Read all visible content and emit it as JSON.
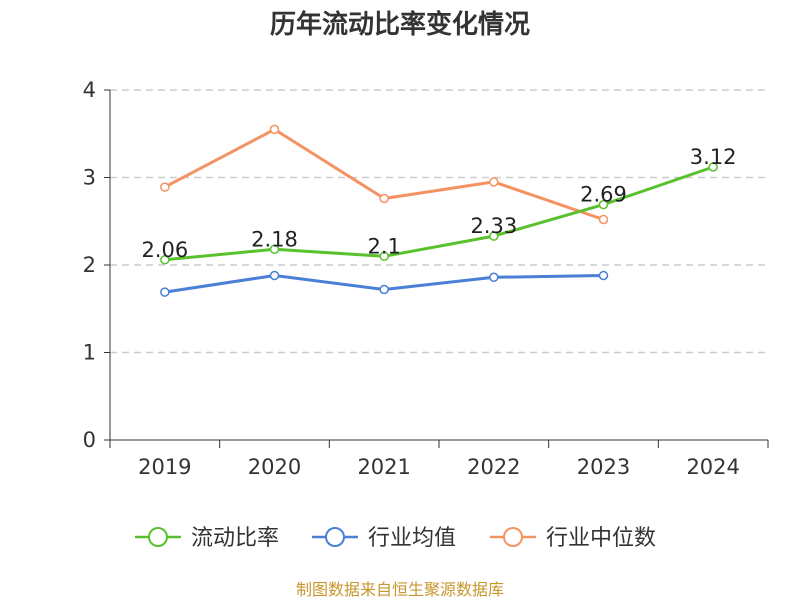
{
  "chart_data": {
    "type": "line",
    "title": "历年流动比率变化情况",
    "categories": [
      "2019",
      "2020",
      "2021",
      "2022",
      "2023",
      "2024"
    ],
    "ylim": [
      0,
      4
    ],
    "yticks": [
      0,
      1,
      2,
      3,
      4
    ],
    "grid": true,
    "legend_position": "bottom",
    "series": [
      {
        "name": "流动比率",
        "color": "#5ac12e",
        "values": [
          2.06,
          2.18,
          2.1,
          2.33,
          2.69,
          3.12
        ],
        "labels": [
          "2.06",
          "2.18",
          "2.1",
          "2.33",
          "2.69",
          "3.12"
        ]
      },
      {
        "name": "行业均值",
        "color": "#4a7fd6",
        "values": [
          1.69,
          1.88,
          1.72,
          1.86,
          1.88,
          null
        ]
      },
      {
        "name": "行业中位数",
        "color": "#f59261",
        "values": [
          2.89,
          3.55,
          2.76,
          2.95,
          2.52,
          null
        ]
      }
    ]
  },
  "footer": "制图数据来自恒生聚源数据库"
}
